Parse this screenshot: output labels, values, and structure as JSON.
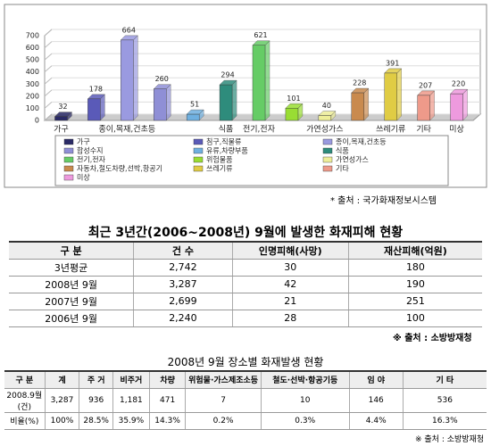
{
  "chart_data": {
    "type": "bar",
    "categories": [
      "가구",
      null,
      "종이,목재,건초등",
      null,
      null,
      "식품",
      "전기,전자",
      null,
      "가연성가스",
      null,
      "쓰레기류",
      "기타",
      "미상"
    ],
    "values": [
      32,
      178,
      664,
      260,
      51,
      294,
      621,
      101,
      40,
      228,
      391,
      207,
      220
    ],
    "colors": [
      "#2a2a66",
      "#5a5ab8",
      "#9a9ae0",
      "#8f8fd6",
      "#6fb0e0",
      "#2e8c7c",
      "#66cc66",
      "#99dd33",
      "#eeee99",
      "#c98a4e",
      "#e0cc44",
      "#ee9a8a",
      "#ee9ade"
    ],
    "legend": [
      "가구",
      "침구,직물류",
      "종이,목재,건초등",
      "합성수지",
      "유류,차량부품",
      "식품",
      "전기,전자",
      "위험물품",
      "가연성가스",
      "자동차,철도차량,선박,항공기",
      "쓰레기류",
      "기타",
      "미상"
    ],
    "ylim": [
      0,
      700
    ],
    "yticks": [
      0,
      100,
      200,
      300,
      400,
      500,
      600,
      700
    ]
  },
  "source1": "* 출처 : 국가화재정보시스템",
  "table1": {
    "title": "최근 3년간(2006~2008년) 9월에 발생한 화재피해 현황",
    "header": [
      "구 분",
      "건 수",
      "인명피해(사망)",
      "재산피해(억원)"
    ],
    "rows": [
      [
        "3년평균",
        "2,742",
        "30",
        "180"
      ],
      [
        "2008년 9월",
        "3,287",
        "42",
        "190"
      ],
      [
        "2007년 9월",
        "2,699",
        "21",
        "251"
      ],
      [
        "2006년 9월",
        "2,240",
        "28",
        "100"
      ]
    ],
    "note": "※ 출처 : 소방방재청"
  },
  "table2": {
    "title": "2008년 9월 장소별 화재발생 현황",
    "header": [
      "구 분",
      "계",
      "주 거",
      "비주거",
      "차량",
      "위험물·가스제조소등",
      "철도·선박·항공기등",
      "임 야",
      "기 타"
    ],
    "rows": [
      [
        "2008.9월(건)",
        "3,287",
        "936",
        "1,181",
        "471",
        "7",
        "10",
        "146",
        "536"
      ],
      [
        "비율(%)",
        "100%",
        "28.5%",
        "35.9%",
        "14.3%",
        "0.2%",
        "0.3%",
        "4.4%",
        "16.3%"
      ]
    ],
    "note": "※ 출처 : 소방방재청"
  }
}
